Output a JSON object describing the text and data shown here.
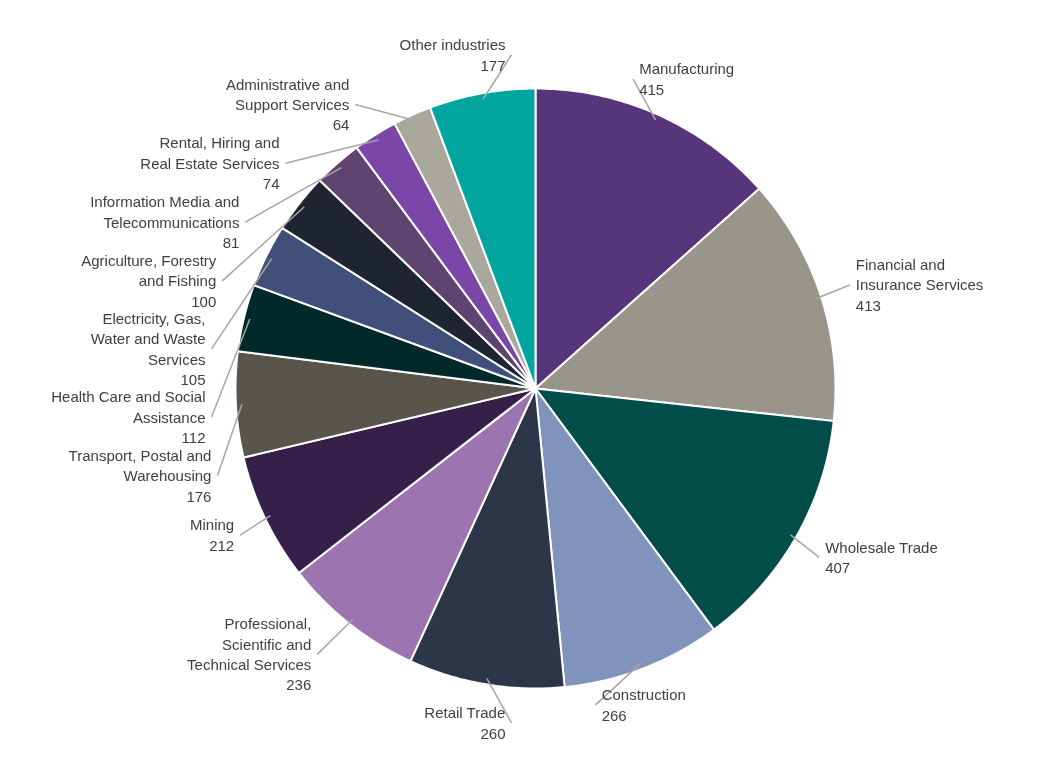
{
  "chart_data": {
    "type": "pie",
    "categories": [
      "Manufacturing",
      "Financial and Insurance Services",
      "Wholesale Trade",
      "Construction",
      "Retail Trade",
      "Professional, Scientific and Technical Services",
      "Mining",
      "Transport, Postal and Warehousing",
      "Health Care and Social Assistance",
      "Electricity, Gas, Water and Waste Services",
      "Agriculture, Forestry and Fishing",
      "Information Media and Telecommunications",
      "Rental, Hiring and Real Estate Services",
      "Administrative and Support Services",
      "Other industries"
    ],
    "values": [
      415,
      413,
      407,
      266,
      260,
      236,
      212,
      176,
      112,
      105,
      100,
      81,
      74,
      64,
      177
    ],
    "colors": [
      "#57357a",
      "#9a958a",
      "#004d4a",
      "#8093bd",
      "#2d3648",
      "#9b74b0",
      "#361f48",
      "#5a554c",
      "#00292a",
      "#41507a",
      "#1e2430",
      "#5f4470",
      "#7a47a8",
      "#aaa79d",
      "#00a59f"
    ],
    "data_labels": true
  }
}
